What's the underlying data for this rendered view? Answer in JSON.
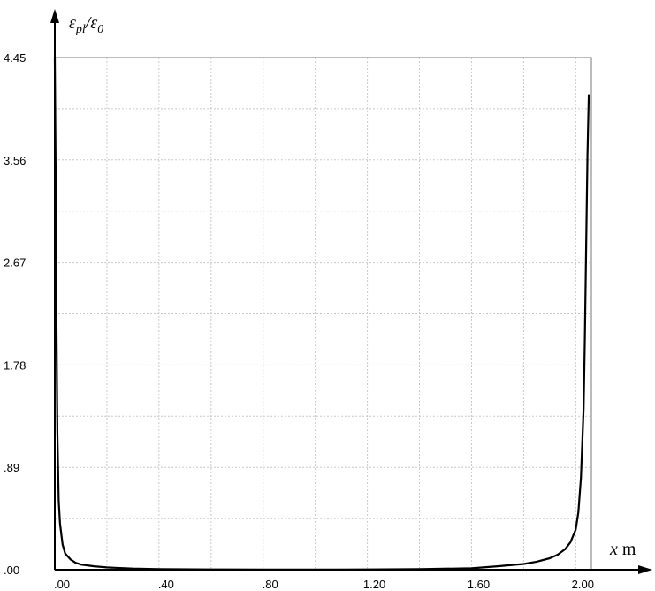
{
  "chart_data": {
    "type": "line",
    "title": "",
    "ylabel": {
      "main": "ε",
      "sub1": "pl",
      "mid": "/ε",
      "sub2": "0"
    },
    "xlabel": {
      "var": "x",
      "unit": " m"
    },
    "xlim": [
      0,
      2.06
    ],
    "ylim": [
      0,
      4.45
    ],
    "x_tick_labels": [
      ".00",
      ".40",
      ".80",
      "1.20",
      "1.60",
      "2.00"
    ],
    "x_tick_values": [
      0,
      0.4,
      0.8,
      1.2,
      1.6,
      2.0
    ],
    "y_tick_labels": [
      ".00",
      ".89",
      "1.78",
      "2.67",
      "3.56",
      "4.45"
    ],
    "y_tick_values": [
      0,
      0.89,
      1.78,
      2.67,
      3.56,
      4.45
    ],
    "grid": true,
    "series": [
      {
        "values_x": [
          0.0,
          0.003,
          0.006,
          0.01,
          0.015,
          0.02,
          0.03,
          0.04,
          0.06,
          0.08,
          0.1,
          0.15,
          0.2,
          0.3,
          0.4,
          0.6,
          0.8,
          1.0,
          1.2,
          1.4,
          1.6,
          1.7,
          1.8,
          1.85,
          1.9,
          1.93,
          1.96,
          1.98,
          2.0,
          2.01,
          2.02,
          2.03,
          2.035,
          2.04,
          2.045,
          2.05
        ],
        "values_y": [
          4.45,
          3.5,
          2.2,
          1.2,
          0.6,
          0.4,
          0.22,
          0.14,
          0.09,
          0.06,
          0.045,
          0.03,
          0.02,
          0.01,
          0.005,
          0.002,
          0.001,
          0.001,
          0.002,
          0.005,
          0.012,
          0.03,
          0.05,
          0.07,
          0.1,
          0.13,
          0.18,
          0.24,
          0.35,
          0.5,
          0.8,
          1.4,
          2.0,
          2.8,
          3.6,
          4.13
        ]
      }
    ]
  }
}
